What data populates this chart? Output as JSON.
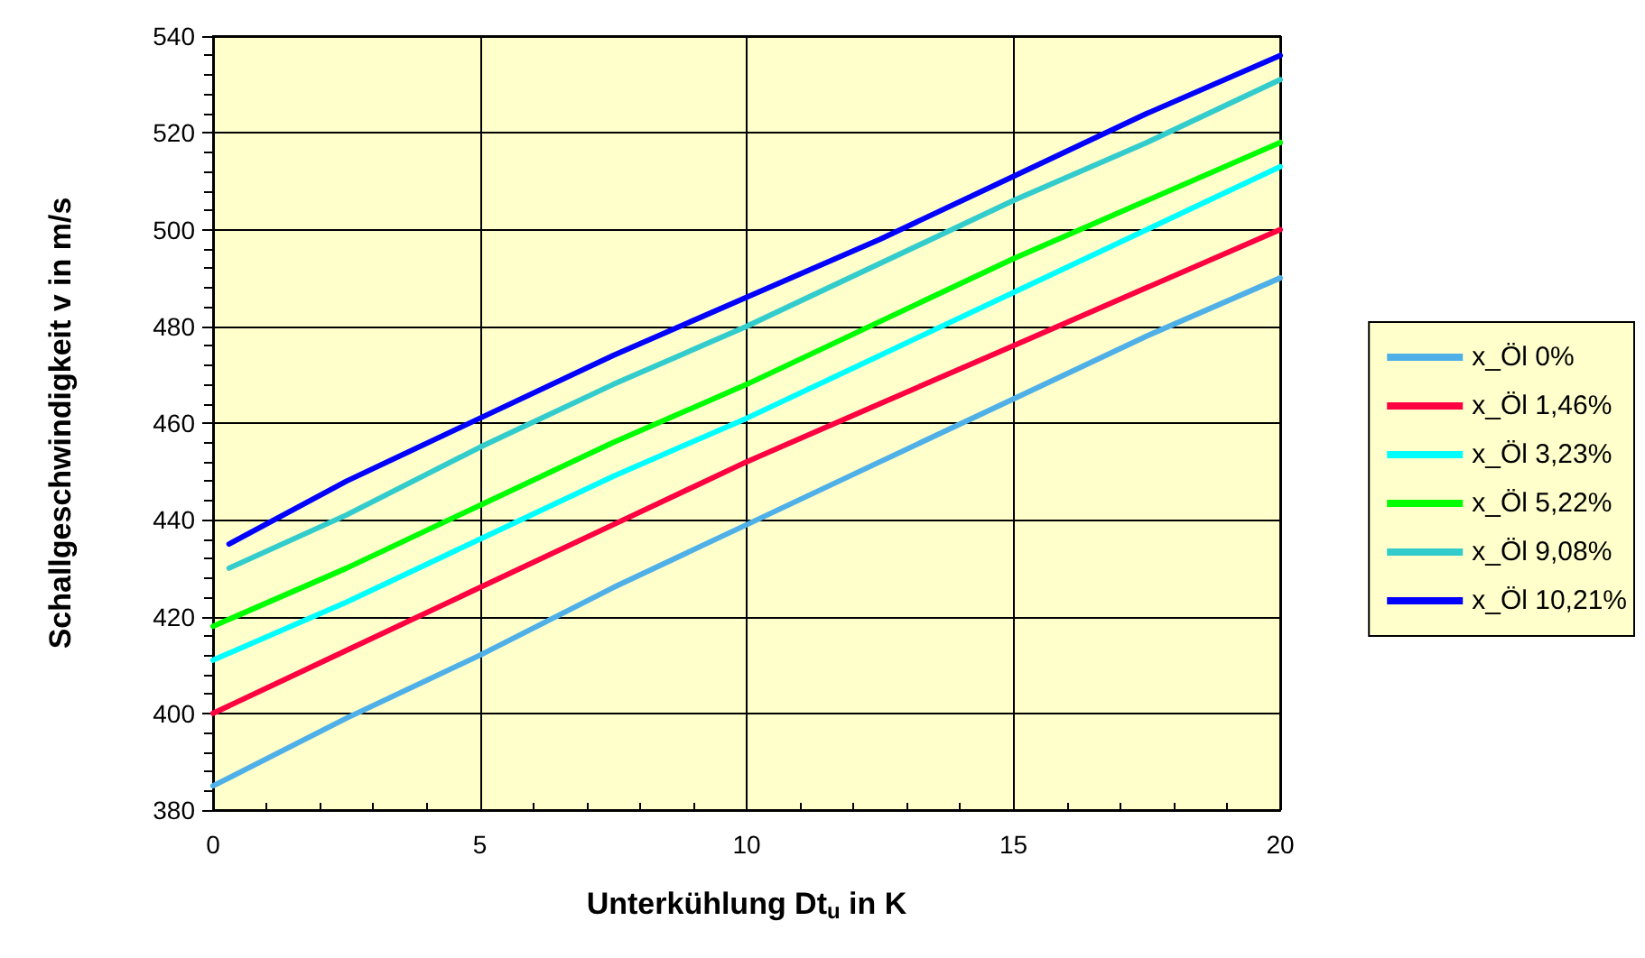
{
  "chart_data": {
    "type": "line",
    "xlabel": "Unterkühlung Dt$_{u}$ in K",
    "ylabel": "Schallgeschwindigkeit v in m/s",
    "xlim": [
      0,
      20
    ],
    "xticks": [
      0,
      5,
      10,
      15,
      20
    ],
    "ylim": [
      380,
      540
    ],
    "yticks": [
      380,
      400,
      420,
      440,
      460,
      480,
      500,
      520,
      540
    ],
    "grid": true,
    "legend": "right",
    "marker": "none",
    "line_style": "solid",
    "series": [
      {
        "name": "x_Öl 0%",
        "color": "#4fb0e8",
        "x": [
          0,
          2.5,
          5,
          7.5,
          10,
          12.5,
          15,
          17.5,
          20
        ],
        "values": [
          385,
          399,
          412,
          426,
          439,
          452,
          465,
          478,
          490
        ]
      },
      {
        "name": "x_Öl 1,46%",
        "color": "#ff0040",
        "x": [
          0,
          2.5,
          5,
          7.5,
          10,
          12.5,
          15,
          17.5,
          20
        ],
        "values": [
          400,
          413,
          426,
          439,
          452,
          464,
          476,
          488,
          500
        ]
      },
      {
        "name": "x_Öl 3,23%",
        "color": "#00ffff",
        "x": [
          0,
          2.5,
          5,
          7.5,
          10,
          12.5,
          15,
          17.5,
          20
        ],
        "values": [
          411,
          423,
          436,
          449,
          461,
          474,
          487,
          500,
          513
        ]
      },
      {
        "name": "x_Öl 5,22%",
        "color": "#00ff00",
        "x": [
          0,
          2.5,
          5,
          7.5,
          10,
          12.5,
          15,
          17.5,
          20
        ],
        "values": [
          418,
          430,
          443,
          456,
          468,
          481,
          494,
          506,
          518
        ]
      },
      {
        "name": "x_Öl 9,08%",
        "color": "#33cccc",
        "x": [
          0.3,
          2.5,
          5,
          7.5,
          10,
          12.5,
          15,
          17.5,
          20
        ],
        "values": [
          430,
          441,
          455,
          468,
          480,
          493,
          506,
          518,
          531
        ]
      },
      {
        "name": "x_Öl 10,21%",
        "color": "#0000ff",
        "x": [
          0.3,
          2.5,
          5,
          7.5,
          10,
          12.5,
          15,
          17.5,
          20
        ],
        "values": [
          435,
          448,
          461,
          474,
          486,
          498,
          511,
          524,
          536
        ]
      }
    ]
  }
}
